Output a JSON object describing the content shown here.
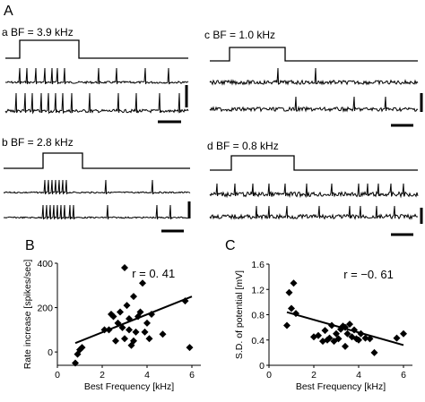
{
  "figure": {
    "panel_A_label": "A",
    "panel_B_label": "B",
    "panel_C_label": "C",
    "subpanels": [
      {
        "id": "a",
        "label": "a BF = 3.9 kHz"
      },
      {
        "id": "b",
        "label": "b BF = 2.8 kHz"
      },
      {
        "id": "c",
        "label": "c BF = 1.0 kHz"
      },
      {
        "id": "d",
        "label": "d BF = 0.8 kHz"
      }
    ]
  },
  "chart_data": [
    {
      "type": "scatter",
      "panel": "B",
      "xlabel": "Best Frequency [kHz]",
      "ylabel": "Rate increase [spikes/sec]",
      "xlim": [
        0,
        6.4
      ],
      "ylim": [
        -60,
        400
      ],
      "xticks": [
        0,
        2,
        4,
        6
      ],
      "yticks": [
        0,
        200,
        400
      ],
      "annotation": "r  =  0. 41",
      "fit_line": {
        "x": [
          0.8,
          6.0
        ],
        "y": [
          40,
          250
        ]
      },
      "points": [
        {
          "x": 0.8,
          "y": -50
        },
        {
          "x": 0.9,
          "y": -10
        },
        {
          "x": 1.0,
          "y": 10
        },
        {
          "x": 1.1,
          "y": 20
        },
        {
          "x": 2.1,
          "y": 100
        },
        {
          "x": 2.3,
          "y": 100
        },
        {
          "x": 2.4,
          "y": 170
        },
        {
          "x": 2.5,
          "y": 160
        },
        {
          "x": 2.6,
          "y": 50
        },
        {
          "x": 2.7,
          "y": 130
        },
        {
          "x": 2.8,
          "y": 180
        },
        {
          "x": 2.9,
          "y": 110
        },
        {
          "x": 3.0,
          "y": 60
        },
        {
          "x": 3.0,
          "y": 380
        },
        {
          "x": 3.1,
          "y": 210
        },
        {
          "x": 3.2,
          "y": 150
        },
        {
          "x": 3.2,
          "y": 100
        },
        {
          "x": 3.3,
          "y": 30
        },
        {
          "x": 3.4,
          "y": 50
        },
        {
          "x": 3.4,
          "y": 250
        },
        {
          "x": 3.5,
          "y": 90
        },
        {
          "x": 3.6,
          "y": 160
        },
        {
          "x": 3.7,
          "y": 180
        },
        {
          "x": 3.8,
          "y": 310
        },
        {
          "x": 3.9,
          "y": 90
        },
        {
          "x": 4.0,
          "y": 130
        },
        {
          "x": 4.1,
          "y": 60
        },
        {
          "x": 4.2,
          "y": 170
        },
        {
          "x": 4.7,
          "y": 80
        },
        {
          "x": 5.7,
          "y": 230
        },
        {
          "x": 5.9,
          "y": 20
        }
      ]
    },
    {
      "type": "scatter",
      "panel": "C",
      "xlabel": "Best Frequency [kHz]",
      "ylabel": "S.D. of potential [mV]",
      "xlim": [
        0,
        6.4
      ],
      "ylim": [
        0,
        1.6
      ],
      "xticks": [
        0,
        2,
        4,
        6
      ],
      "yticks": [
        0,
        0.4,
        0.8,
        1.2,
        1.6
      ],
      "ytick_labels": [
        "0",
        "0.4",
        "0.8",
        "1.2",
        "1.6"
      ],
      "annotation": "r  =  −0. 61",
      "fit_line": {
        "x": [
          0.8,
          6.0
        ],
        "y": [
          0.84,
          0.32
        ]
      },
      "points": [
        {
          "x": 0.8,
          "y": 0.63
        },
        {
          "x": 0.9,
          "y": 1.15
        },
        {
          "x": 1.0,
          "y": 0.9
        },
        {
          "x": 1.1,
          "y": 1.3
        },
        {
          "x": 1.2,
          "y": 0.82
        },
        {
          "x": 2.0,
          "y": 0.45
        },
        {
          "x": 2.2,
          "y": 0.47
        },
        {
          "x": 2.4,
          "y": 0.38
        },
        {
          "x": 2.5,
          "y": 0.55
        },
        {
          "x": 2.6,
          "y": 0.4
        },
        {
          "x": 2.7,
          "y": 0.43
        },
        {
          "x": 2.8,
          "y": 0.63
        },
        {
          "x": 2.9,
          "y": 0.38
        },
        {
          "x": 3.0,
          "y": 0.5
        },
        {
          "x": 3.1,
          "y": 0.42
        },
        {
          "x": 3.2,
          "y": 0.57
        },
        {
          "x": 3.3,
          "y": 0.62
        },
        {
          "x": 3.4,
          "y": 0.6
        },
        {
          "x": 3.4,
          "y": 0.3
        },
        {
          "x": 3.5,
          "y": 0.5
        },
        {
          "x": 3.6,
          "y": 0.65
        },
        {
          "x": 3.7,
          "y": 0.45
        },
        {
          "x": 3.8,
          "y": 0.56
        },
        {
          "x": 3.9,
          "y": 0.42
        },
        {
          "x": 4.0,
          "y": 0.4
        },
        {
          "x": 4.1,
          "y": 0.5
        },
        {
          "x": 4.3,
          "y": 0.43
        },
        {
          "x": 4.5,
          "y": 0.42
        },
        {
          "x": 4.7,
          "y": 0.2
        },
        {
          "x": 5.7,
          "y": 0.43
        },
        {
          "x": 6.0,
          "y": 0.5
        }
      ]
    }
  ]
}
